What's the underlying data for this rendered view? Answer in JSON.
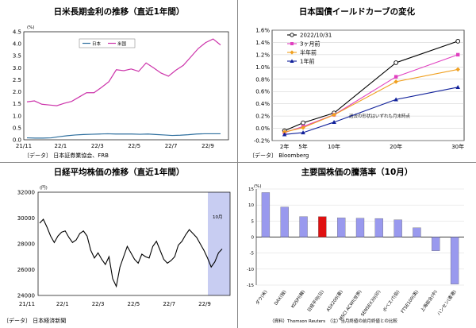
{
  "panels": {
    "p1": {
      "title": "日米長期金利の推移（直近1年間）",
      "unit": "(%)",
      "source": "〔データ〕 日本証券業協会、FRB",
      "legend": [
        "日本",
        "米国"
      ]
    },
    "p2": {
      "title": "日本国債イールドカーブの変化",
      "source": "〔データ〕 Bloomberg",
      "annotation": "過去の形状はいずれも月末時点",
      "legend": [
        "2022/10/31",
        "3ヶ月前",
        "半年前",
        "1年前"
      ]
    },
    "p3": {
      "title": "日経平均株価の推移（直近1年間）",
      "unit": "(円)",
      "source": "〔データ〕 日本経済新聞",
      "highlight_label": "10月"
    },
    "p4": {
      "title": "主要国株価の騰落率（10月）",
      "unit": "(%)",
      "source": "（資料）Thomson Reuters　（注）当月終値の前月終値との比較"
    }
  },
  "chart_data": [
    {
      "type": "line",
      "title": "日米長期金利の推移（直近1年間）",
      "ylabel": "(%)",
      "ylim": [
        0.0,
        4.5
      ],
      "yticks": [
        "0.0",
        "0.5",
        "1.0",
        "1.5",
        "2.0",
        "2.5",
        "3.0",
        "3.5",
        "4.0",
        "4.5"
      ],
      "xticks": [
        "21/11",
        "22/1",
        "22/3",
        "22/5",
        "22/7",
        "22/9"
      ],
      "legend_position": "top-center",
      "series": [
        {
          "name": "日本",
          "color": "#2e6f9e",
          "values": [
            0.08,
            0.07,
            0.07,
            0.08,
            0.13,
            0.17,
            0.2,
            0.22,
            0.23,
            0.24,
            0.25,
            0.24,
            0.24,
            0.24,
            0.23,
            0.24,
            0.22,
            0.2,
            0.18,
            0.19,
            0.21,
            0.24,
            0.25,
            0.25,
            0.25
          ]
        },
        {
          "name": "米国",
          "color": "#cc33aa",
          "values": [
            1.58,
            1.62,
            1.48,
            1.45,
            1.42,
            1.52,
            1.6,
            1.78,
            1.96,
            1.96,
            2.18,
            2.42,
            2.92,
            2.88,
            2.95,
            2.85,
            3.2,
            3.0,
            2.78,
            2.65,
            2.9,
            3.1,
            3.45,
            3.8,
            4.05,
            4.2,
            3.95
          ]
        }
      ]
    },
    {
      "type": "line",
      "title": "日本国債イールドカーブの変化",
      "categories": [
        "2年",
        "5年",
        "10年",
        "20年",
        "30年"
      ],
      "x": [
        2,
        5,
        10,
        20,
        30
      ],
      "ylim": [
        -0.2,
        1.6
      ],
      "yticks": [
        "-0.2%",
        "0.0%",
        "0.2%",
        "0.4%",
        "0.6%",
        "0.8%",
        "1.0%",
        "1.2%",
        "1.4%",
        "1.6%"
      ],
      "legend_position": "top-left",
      "series": [
        {
          "name": "2022/10/31",
          "color": "#000000",
          "marker": "circle",
          "values": [
            -0.04,
            0.09,
            0.25,
            1.07,
            1.42
          ]
        },
        {
          "name": "3ヶ月前",
          "color": "#e040c0",
          "marker": "square",
          "values": [
            -0.07,
            0.03,
            0.22,
            0.84,
            1.2
          ]
        },
        {
          "name": "半年前",
          "color": "#f0a020",
          "marker": "diamond",
          "values": [
            -0.06,
            0.01,
            0.22,
            0.76,
            0.96
          ]
        },
        {
          "name": "1年前",
          "color": "#10209a",
          "marker": "triangle",
          "values": [
            -0.1,
            -0.07,
            0.1,
            0.47,
            0.67
          ]
        }
      ]
    },
    {
      "type": "line",
      "title": "日経平均株価の推移（直近1年間）",
      "ylabel": "(円)",
      "ylim": [
        24000,
        32000
      ],
      "yticks": [
        "24000",
        "26000",
        "28000",
        "30000",
        "32000"
      ],
      "xticks": [
        "21/11",
        "22/1",
        "22/3",
        "22/5",
        "22/7",
        "22/9"
      ],
      "series": [
        {
          "name": "",
          "color": "#000000",
          "values": [
            29600,
            29900,
            29300,
            28600,
            28100,
            28600,
            28900,
            29000,
            28500,
            28100,
            28300,
            28800,
            29000,
            28600,
            27500,
            26900,
            27300,
            26800,
            26400,
            27000,
            25300,
            24700,
            26200,
            27000,
            27800,
            27300,
            26800,
            26500,
            27200,
            27000,
            26900,
            27800,
            28200,
            27500,
            26800,
            26500,
            26700,
            27000,
            27900,
            28200,
            28700,
            29100,
            28800,
            28500,
            28000,
            27500,
            26900,
            26200,
            26600,
            27300,
            27600
          ]
        }
      ]
    },
    {
      "type": "bar",
      "title": "主要国株価の騰落率（10月）",
      "ylabel": "(%)",
      "ylim": [
        -15,
        15
      ],
      "yticks": [
        "15",
        "10",
        "5",
        "0",
        "-5",
        "-10",
        "-15"
      ],
      "categories": [
        "ダウ(米)",
        "DAX(独)",
        "KOSPI(韓)",
        "日経平均(日)",
        "ASX200(豪)",
        "MSCI ACWI(世界)",
        "SENSEX30(印)",
        "ボベスパ(伯)",
        "FTSE100(英)",
        "上海総合(中)",
        "ハンセン(香港)"
      ],
      "values": [
        13.9,
        9.4,
        6.4,
        6.4,
        6.0,
        5.9,
        5.8,
        5.4,
        2.9,
        -4.3,
        -14.7
      ],
      "colors": [
        "#9999ee",
        "#9999ee",
        "#9999ee",
        "#e01010",
        "#9999ee",
        "#9999ee",
        "#9999ee",
        "#9999ee",
        "#9999ee",
        "#9999ee",
        "#9999ee"
      ]
    }
  ]
}
